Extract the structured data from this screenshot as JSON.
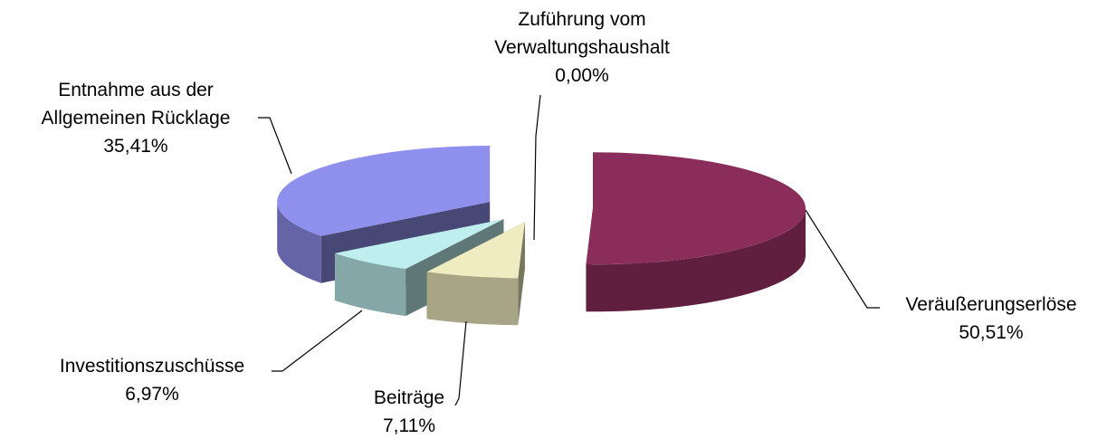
{
  "chart_data": {
    "type": "pie",
    "categories": [
      "Veräußerungserlöse",
      "Beiträge",
      "Investitionszuschüsse",
      "Entnahme aus der Allgemeinen Rücklage",
      "Zuführung vom Verwaltungshaushalt"
    ],
    "values": [
      50.51,
      7.11,
      6.97,
      35.41,
      0.0
    ],
    "value_labels": [
      "50,51%",
      "7,11%",
      "6,97%",
      "35,41%",
      "0,00%"
    ],
    "colors": [
      "#8b2d5a",
      "#eeecc0",
      "#bfeeee",
      "#8f8fee",
      "#9bbb59"
    ]
  }
}
